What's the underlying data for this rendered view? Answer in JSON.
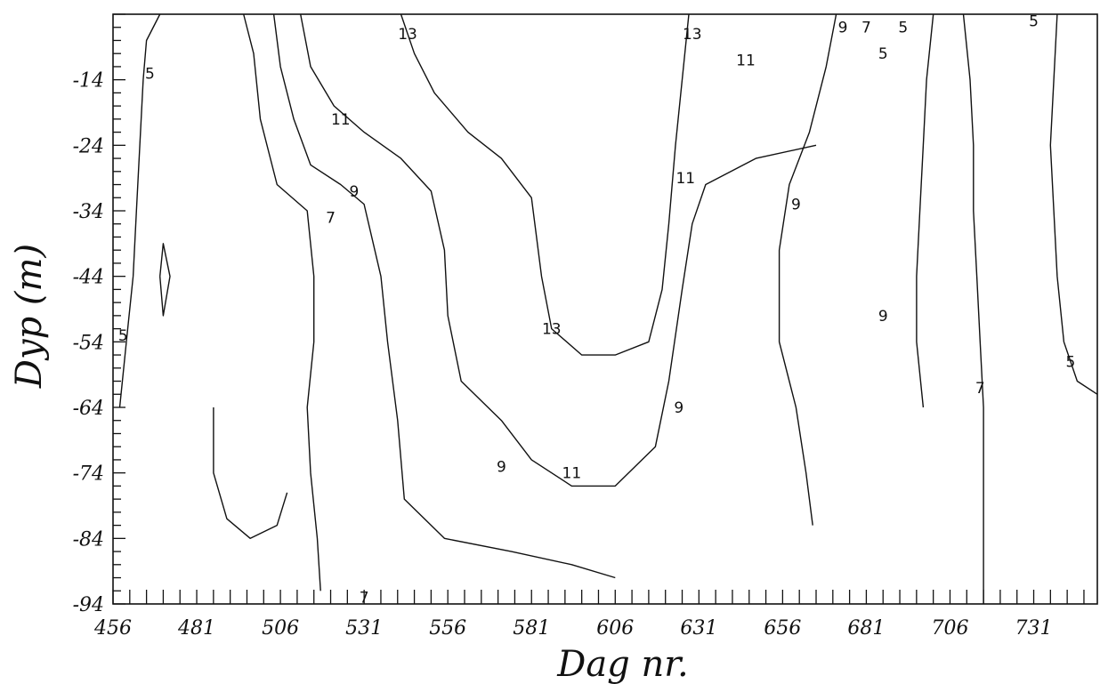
{
  "chart_data": {
    "type": "contour",
    "title": "",
    "xlabel": "Dag nr.",
    "ylabel": "Dyp (m)",
    "xlim": [
      456,
      750
    ],
    "ylim": [
      -94,
      -4
    ],
    "x_ticks": [
      456,
      481,
      506,
      531,
      556,
      581,
      606,
      631,
      656,
      681,
      706,
      731
    ],
    "x_tick_labels": [
      "456",
      "481",
      "506",
      "531",
      "556",
      "581",
      "606",
      "631",
      "656",
      "681",
      "706",
      "731"
    ],
    "y_ticks": [
      -14,
      -24,
      -34,
      -44,
      -54,
      -64,
      -74,
      -84,
      -94
    ],
    "y_tick_labels": [
      "-14",
      "-24",
      "-34",
      "-44",
      "-54",
      "-64",
      "-74",
      "-84",
      "-94"
    ],
    "contour_levels": [
      5,
      7,
      9,
      11,
      13
    ],
    "contours": [
      {
        "level": 5,
        "points": [
          [
            470,
            -4
          ],
          [
            466,
            -8
          ],
          [
            465,
            -14
          ],
          [
            464,
            -24
          ],
          [
            463,
            -34
          ],
          [
            462,
            -44
          ],
          [
            460,
            -54
          ],
          [
            458,
            -64
          ]
        ]
      },
      {
        "level": 5,
        "points": [
          [
            470,
            -44
          ],
          [
            471,
            -39
          ],
          [
            473,
            -44
          ],
          [
            471,
            -50
          ],
          [
            470,
            -44
          ]
        ]
      },
      {
        "level": 7,
        "points": [
          [
            495,
            -4
          ],
          [
            498,
            -10
          ],
          [
            500,
            -20
          ],
          [
            505,
            -30
          ],
          [
            514,
            -34
          ],
          [
            516,
            -44
          ],
          [
            516,
            -54
          ],
          [
            514,
            -64
          ],
          [
            515,
            -74
          ],
          [
            517,
            -84
          ],
          [
            518,
            -92
          ]
        ]
      },
      {
        "level": 7,
        "points": [
          [
            486,
            -64
          ],
          [
            486,
            -74
          ],
          [
            490,
            -81
          ],
          [
            497,
            -84
          ],
          [
            505,
            -82
          ],
          [
            508,
            -77
          ]
        ]
      },
      {
        "level": 9,
        "points": [
          [
            504,
            -4
          ],
          [
            506,
            -12
          ],
          [
            510,
            -20
          ],
          [
            515,
            -27
          ],
          [
            524,
            -30
          ],
          [
            531,
            -33
          ],
          [
            536,
            -44
          ],
          [
            538,
            -54
          ],
          [
            541,
            -66
          ],
          [
            543,
            -78
          ],
          [
            555,
            -84
          ],
          [
            575,
            -86
          ],
          [
            593,
            -88
          ],
          [
            606,
            -90
          ]
        ]
      },
      {
        "level": 11,
        "points": [
          [
            512,
            -4
          ],
          [
            515,
            -12
          ],
          [
            522,
            -18
          ],
          [
            531,
            -22
          ],
          [
            542,
            -26
          ],
          [
            551,
            -31
          ],
          [
            555,
            -40
          ],
          [
            556,
            -50
          ],
          [
            560,
            -60
          ],
          [
            572,
            -66
          ],
          [
            581,
            -72
          ],
          [
            593,
            -76
          ],
          [
            606,
            -76
          ],
          [
            618,
            -70
          ],
          [
            622,
            -60
          ],
          [
            626,
            -46
          ],
          [
            629,
            -36
          ],
          [
            633,
            -30
          ],
          [
            648,
            -26
          ],
          [
            666,
            -24
          ]
        ]
      },
      {
        "level": 13,
        "points": [
          [
            542,
            -4
          ],
          [
            546,
            -10
          ],
          [
            552,
            -16
          ],
          [
            562,
            -22
          ],
          [
            572,
            -26
          ],
          [
            581,
            -32
          ],
          [
            584,
            -44
          ],
          [
            587,
            -52
          ],
          [
            596,
            -56
          ],
          [
            606,
            -56
          ],
          [
            616,
            -54
          ],
          [
            620,
            -46
          ],
          [
            622,
            -36
          ],
          [
            624,
            -24
          ],
          [
            626,
            -14
          ],
          [
            628,
            -4
          ]
        ]
      },
      {
        "level": 9,
        "points": [
          [
            672,
            -4
          ],
          [
            669,
            -12
          ],
          [
            664,
            -22
          ],
          [
            658,
            -30
          ],
          [
            655,
            -40
          ],
          [
            655,
            -54
          ],
          [
            660,
            -64
          ],
          [
            663,
            -74
          ],
          [
            665,
            -82
          ]
        ]
      },
      {
        "level": 9,
        "points": [
          [
            701,
            -4
          ],
          [
            699,
            -14
          ],
          [
            698,
            -24
          ],
          [
            697,
            -34
          ],
          [
            696,
            -44
          ],
          [
            696,
            -54
          ],
          [
            698,
            -64
          ]
        ]
      },
      {
        "level": 7,
        "points": [
          [
            710,
            -4
          ],
          [
            712,
            -14
          ],
          [
            713,
            -24
          ],
          [
            713,
            -34
          ],
          [
            714,
            -44
          ],
          [
            715,
            -54
          ],
          [
            716,
            -64
          ],
          [
            716,
            -74
          ],
          [
            716,
            -84
          ],
          [
            716,
            -94
          ]
        ]
      },
      {
        "level": 5,
        "points": [
          [
            738,
            -4
          ],
          [
            737,
            -14
          ],
          [
            736,
            -24
          ],
          [
            737,
            -34
          ],
          [
            738,
            -44
          ],
          [
            740,
            -54
          ],
          [
            744,
            -60
          ],
          [
            750,
            -62
          ]
        ]
      }
    ],
    "contour_labels": [
      {
        "text": "5",
        "x": 467,
        "y": -13
      },
      {
        "text": "5",
        "x": 459,
        "y": -53
      },
      {
        "text": "7",
        "x": 521,
        "y": -35
      },
      {
        "text": "9",
        "x": 528,
        "y": -31
      },
      {
        "text": "11",
        "x": 524,
        "y": -20
      },
      {
        "text": "13",
        "x": 544,
        "y": -7
      },
      {
        "text": "13",
        "x": 587,
        "y": -52
      },
      {
        "text": "9",
        "x": 572,
        "y": -73
      },
      {
        "text": "11",
        "x": 593,
        "y": -74
      },
      {
        "text": "9",
        "x": 625,
        "y": -64
      },
      {
        "text": "11",
        "x": 627,
        "y": -29
      },
      {
        "text": "13",
        "x": 629,
        "y": -7
      },
      {
        "text": "11",
        "x": 645,
        "y": -11
      },
      {
        "text": "9",
        "x": 660,
        "y": -33
      },
      {
        "text": "9",
        "x": 674,
        "y": -6
      },
      {
        "text": "7",
        "x": 681,
        "y": -6
      },
      {
        "text": "5",
        "x": 686,
        "y": -10
      },
      {
        "text": "5",
        "x": 692,
        "y": -6
      },
      {
        "text": "9",
        "x": 686,
        "y": -50
      },
      {
        "text": "7",
        "x": 715,
        "y": -61
      },
      {
        "text": "5",
        "x": 731,
        "y": -5
      },
      {
        "text": "5",
        "x": 742,
        "y": -57
      },
      {
        "text": "7",
        "x": 531,
        "y": -93
      }
    ]
  }
}
